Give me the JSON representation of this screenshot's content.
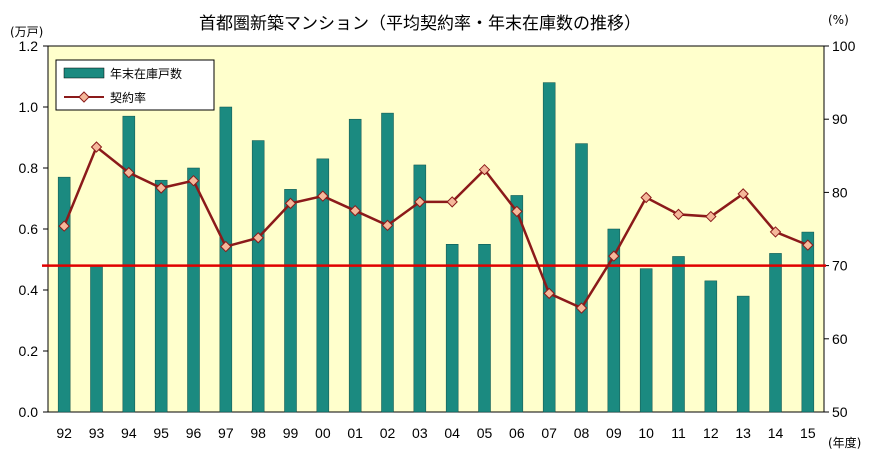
{
  "chart_data": {
    "type": "bar+line",
    "title": "首都圏新築マンション（平均契約率・年末在庫数の推移）",
    "y_left_unit": "(万戸)",
    "y_right_unit": "(%)",
    "x_unit": "(年度)",
    "categories": [
      "92",
      "93",
      "94",
      "95",
      "96",
      "97",
      "98",
      "99",
      "00",
      "01",
      "02",
      "03",
      "04",
      "05",
      "06",
      "07",
      "08",
      "09",
      "10",
      "11",
      "12",
      "13",
      "14",
      "15"
    ],
    "y_left_lim": [
      0,
      1.2
    ],
    "y_left_ticks": [
      "0.0",
      "0.2",
      "0.4",
      "0.6",
      "0.8",
      "1.0",
      "1.2"
    ],
    "y_right_lim": [
      50,
      100
    ],
    "y_right_ticks": [
      "50",
      "60",
      "70",
      "80",
      "90",
      "100"
    ],
    "reference_line_right": 70,
    "series": [
      {
        "name": "年末在庫戸数",
        "kind": "bar",
        "axis": "left",
        "color": "#1b8a80",
        "values": [
          0.77,
          0.48,
          0.97,
          0.76,
          0.8,
          1.0,
          0.89,
          0.73,
          0.83,
          0.96,
          0.98,
          0.81,
          0.55,
          0.55,
          0.71,
          1.08,
          0.88,
          0.6,
          0.47,
          0.51,
          0.43,
          0.38,
          0.52,
          0.59
        ]
      },
      {
        "name": "契約率",
        "kind": "line",
        "axis": "right",
        "color": "#8b1a1a",
        "marker_fill": "#f5b89a",
        "values": [
          75.4,
          86.2,
          82.7,
          80.6,
          81.6,
          72.6,
          73.8,
          78.5,
          79.5,
          77.5,
          75.5,
          78.7,
          78.7,
          83.1,
          77.4,
          66.2,
          64.2,
          71.3,
          79.3,
          77.0,
          76.7,
          79.8,
          74.6,
          72.8
        ]
      }
    ],
    "legend": {
      "placement": "top-left"
    },
    "plot_background": "#ffffcc",
    "reference_line_color": "#e00000"
  }
}
